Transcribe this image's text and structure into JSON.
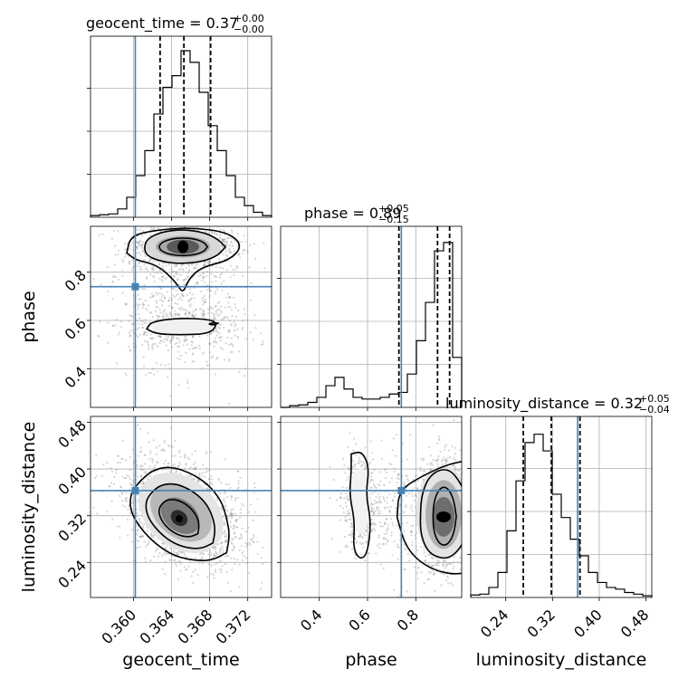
{
  "chart_data": {
    "type": "corner",
    "parameters": [
      {
        "name": "geocent_time",
        "range": [
          0.3555,
          0.3745
        ],
        "ticks": [
          0.36,
          0.364,
          0.368,
          0.372
        ],
        "tick_labels": [
          "0.360",
          "0.364",
          "0.368",
          "0.372"
        ],
        "truth": 0.3602,
        "quantiles": [
          0.3628,
          0.3653,
          0.3681
        ],
        "title": "geocent_time = 0.37",
        "title_plus": "+0.00",
        "title_minus": "−0.00",
        "hist": [
          0.01,
          0.015,
          0.02,
          0.05,
          0.12,
          0.25,
          0.4,
          0.62,
          0.78,
          0.85,
          1.0,
          0.93,
          0.75,
          0.55,
          0.4,
          0.25,
          0.12,
          0.07,
          0.03,
          0.01
        ]
      },
      {
        "name": "phase",
        "range": [
          0.24,
          0.99
        ],
        "ticks": [
          0.4,
          0.6,
          0.8
        ],
        "tick_labels": [
          "0.4",
          "0.6",
          "0.8"
        ],
        "truth": 0.74,
        "quantiles": [
          0.73,
          0.89,
          0.94
        ],
        "title": "phase = 0.89",
        "title_plus": "+0.05",
        "title_minus": "−0.15",
        "hist": [
          0.0,
          0.01,
          0.015,
          0.03,
          0.06,
          0.13,
          0.18,
          0.11,
          0.06,
          0.05,
          0.05,
          0.06,
          0.08,
          0.09,
          0.2,
          0.4,
          0.63,
          0.94,
          0.99,
          0.3
        ]
      },
      {
        "name": "luminosity_distance",
        "range": [
          0.18,
          0.49
        ],
        "ticks": [
          0.24,
          0.32,
          0.4,
          0.48
        ],
        "tick_labels": [
          "0.24",
          "0.32",
          "0.40",
          "0.48"
        ],
        "truth": 0.363,
        "quantiles": [
          0.27,
          0.318,
          0.367
        ],
        "title": "luminosity_distance = 0.32",
        "title_plus": "+0.05",
        "title_minus": "−0.04",
        "hist": [
          0.015,
          0.02,
          0.06,
          0.15,
          0.4,
          0.7,
          0.93,
          0.98,
          0.88,
          0.62,
          0.48,
          0.35,
          0.25,
          0.15,
          0.09,
          0.06,
          0.05,
          0.03,
          0.02,
          0.01
        ]
      }
    ],
    "truth_color": "#4682b4",
    "grid": true
  }
}
